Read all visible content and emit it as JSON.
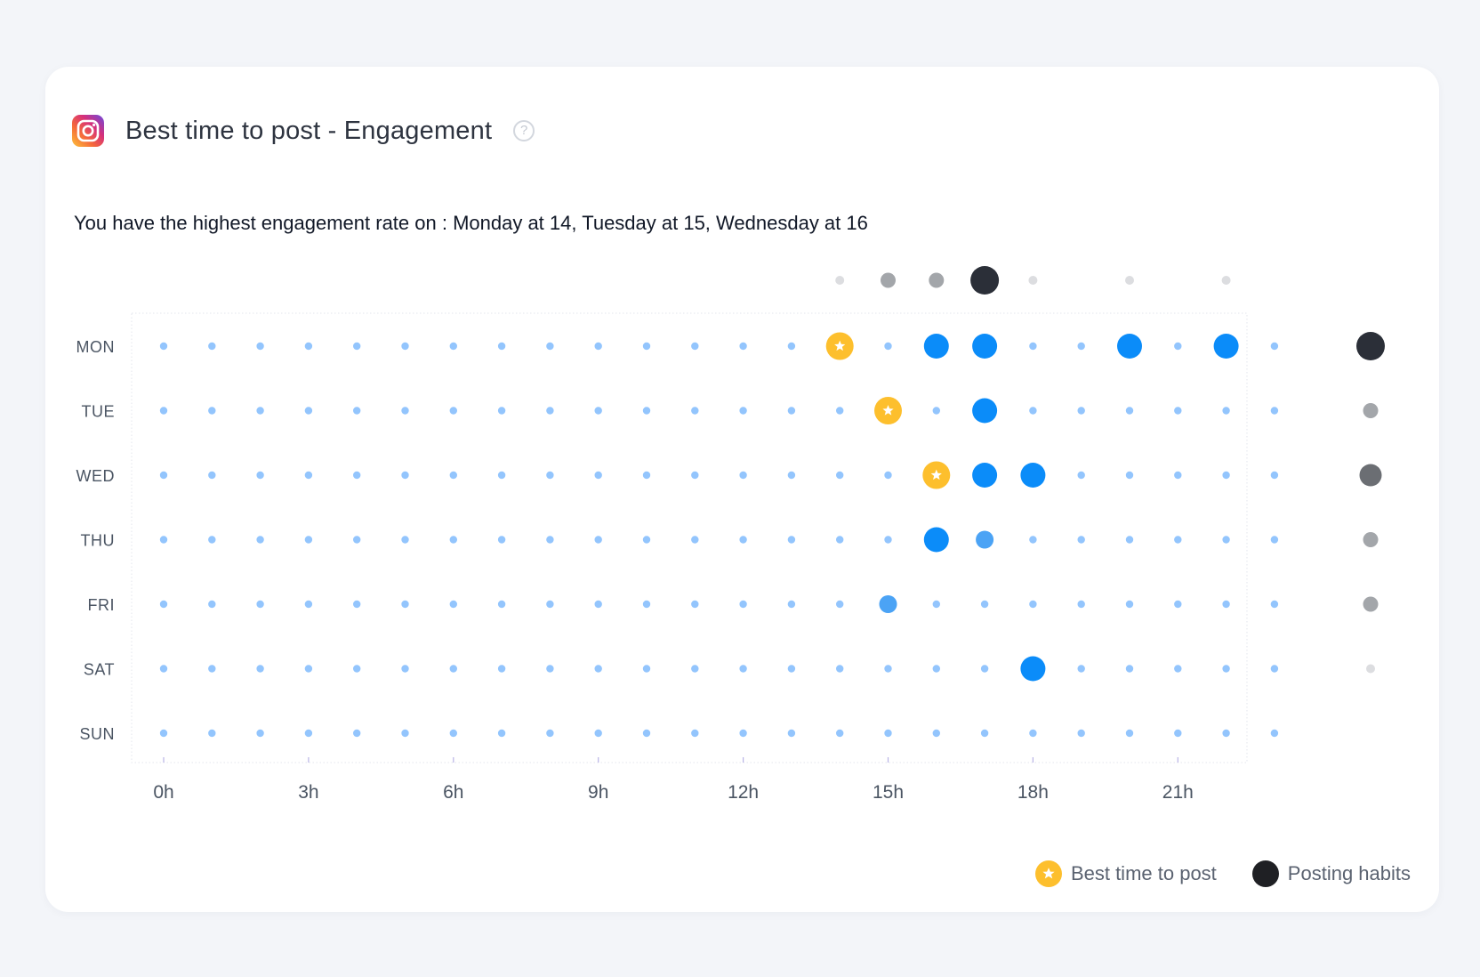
{
  "header": {
    "title": "Best time to post - Engagement",
    "help_glyph": "?",
    "icon": "instagram-icon"
  },
  "summary": "You have the highest engagement rate on : Monday at 14, Tuesday at 15, Wednesday at 16",
  "legend": {
    "best_label": "Best time to post",
    "habits_label": "Posting habits"
  },
  "colors": {
    "base_dot": "#93c5fd",
    "mid_dot": "#4ba3f5",
    "high_dot": "#0b8cf9",
    "best": "#fdbf2d",
    "habits_strong": "#2b2f38",
    "habits_medium": "#6b6e73",
    "habits_light": "#a3a6aa",
    "habits_faint": "#dcdde0"
  },
  "chart_data": {
    "type": "scatter",
    "days": [
      "MON",
      "TUE",
      "WED",
      "THU",
      "FRI",
      "SAT",
      "SUN"
    ],
    "hours": [
      0,
      1,
      2,
      3,
      4,
      5,
      6,
      7,
      8,
      9,
      10,
      11,
      12,
      13,
      14,
      15,
      16,
      17,
      18,
      19,
      20,
      21,
      22,
      23
    ],
    "x_ticks": [
      {
        "hour": 0,
        "label": "0h"
      },
      {
        "hour": 3,
        "label": "3h"
      },
      {
        "hour": 6,
        "label": "6h"
      },
      {
        "hour": 9,
        "label": "9h"
      },
      {
        "hour": 12,
        "label": "12h"
      },
      {
        "hour": 15,
        "label": "15h"
      },
      {
        "hour": 18,
        "label": "18h"
      },
      {
        "hour": 21,
        "label": "21h"
      }
    ],
    "engagement_points": [
      {
        "day": "MON",
        "hour": 16,
        "level": 3
      },
      {
        "day": "MON",
        "hour": 17,
        "level": 3
      },
      {
        "day": "MON",
        "hour": 20,
        "level": 3
      },
      {
        "day": "MON",
        "hour": 22,
        "level": 3
      },
      {
        "day": "TUE",
        "hour": 17,
        "level": 3
      },
      {
        "day": "WED",
        "hour": 17,
        "level": 3
      },
      {
        "day": "WED",
        "hour": 18,
        "level": 3
      },
      {
        "day": "THU",
        "hour": 16,
        "level": 3
      },
      {
        "day": "THU",
        "hour": 17,
        "level": 2
      },
      {
        "day": "FRI",
        "hour": 15,
        "level": 2
      },
      {
        "day": "SAT",
        "hour": 18,
        "level": 3
      }
    ],
    "best_times": [
      {
        "day": "MON",
        "hour": 14
      },
      {
        "day": "TUE",
        "hour": 15
      },
      {
        "day": "WED",
        "hour": 16
      }
    ],
    "posting_habits_by_hour": [
      {
        "hour": 14,
        "level": 1
      },
      {
        "hour": 15,
        "level": 2
      },
      {
        "hour": 16,
        "level": 2
      },
      {
        "hour": 17,
        "level": 4
      },
      {
        "hour": 18,
        "level": 1
      },
      {
        "hour": 20,
        "level": 1
      },
      {
        "hour": 22,
        "level": 1
      }
    ],
    "posting_habits_by_day": [
      {
        "day": "MON",
        "level": 4
      },
      {
        "day": "TUE",
        "level": 2
      },
      {
        "day": "WED",
        "level": 3
      },
      {
        "day": "THU",
        "level": 2
      },
      {
        "day": "FRI",
        "level": 2
      },
      {
        "day": "SAT",
        "level": 1
      }
    ]
  }
}
